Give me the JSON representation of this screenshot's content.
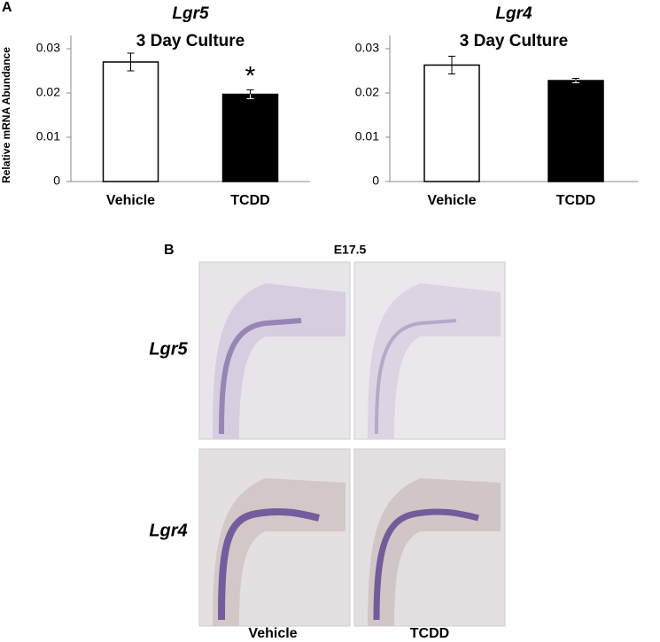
{
  "chart_data": [
    {
      "type": "bar",
      "title": "Lgr5",
      "subtitle": "3 Day Culture",
      "y_label": "Relative mRNA Abundance",
      "categories": [
        "Vehicle",
        "TCDD"
      ],
      "values": [
        0.027,
        0.0197
      ],
      "errors": [
        0.002,
        0.001
      ],
      "colors": [
        "#ffffff",
        "#000000"
      ],
      "annotations": [
        null,
        "*"
      ],
      "ylim": [
        0,
        0.033
      ],
      "yticks": [
        0,
        0.01,
        0.02,
        0.03
      ],
      "grid": false
    },
    {
      "type": "bar",
      "title": "Lgr4",
      "subtitle": "3 Day Culture",
      "categories": [
        "Vehicle",
        "TCDD"
      ],
      "values": [
        0.0263,
        0.0228
      ],
      "errors": [
        0.002,
        0.0005
      ],
      "colors": [
        "#ffffff",
        "#000000"
      ],
      "ylim": [
        0,
        0.033
      ],
      "yticks": [
        0,
        0.01,
        0.02,
        0.03
      ],
      "grid": false
    }
  ],
  "panel_a": {
    "label": "A"
  },
  "panel_b": {
    "label": "B",
    "stage": "E17.5",
    "rows": [
      "Lgr5",
      "Lgr4"
    ],
    "columns": [
      "Vehicle",
      "TCDD"
    ]
  }
}
